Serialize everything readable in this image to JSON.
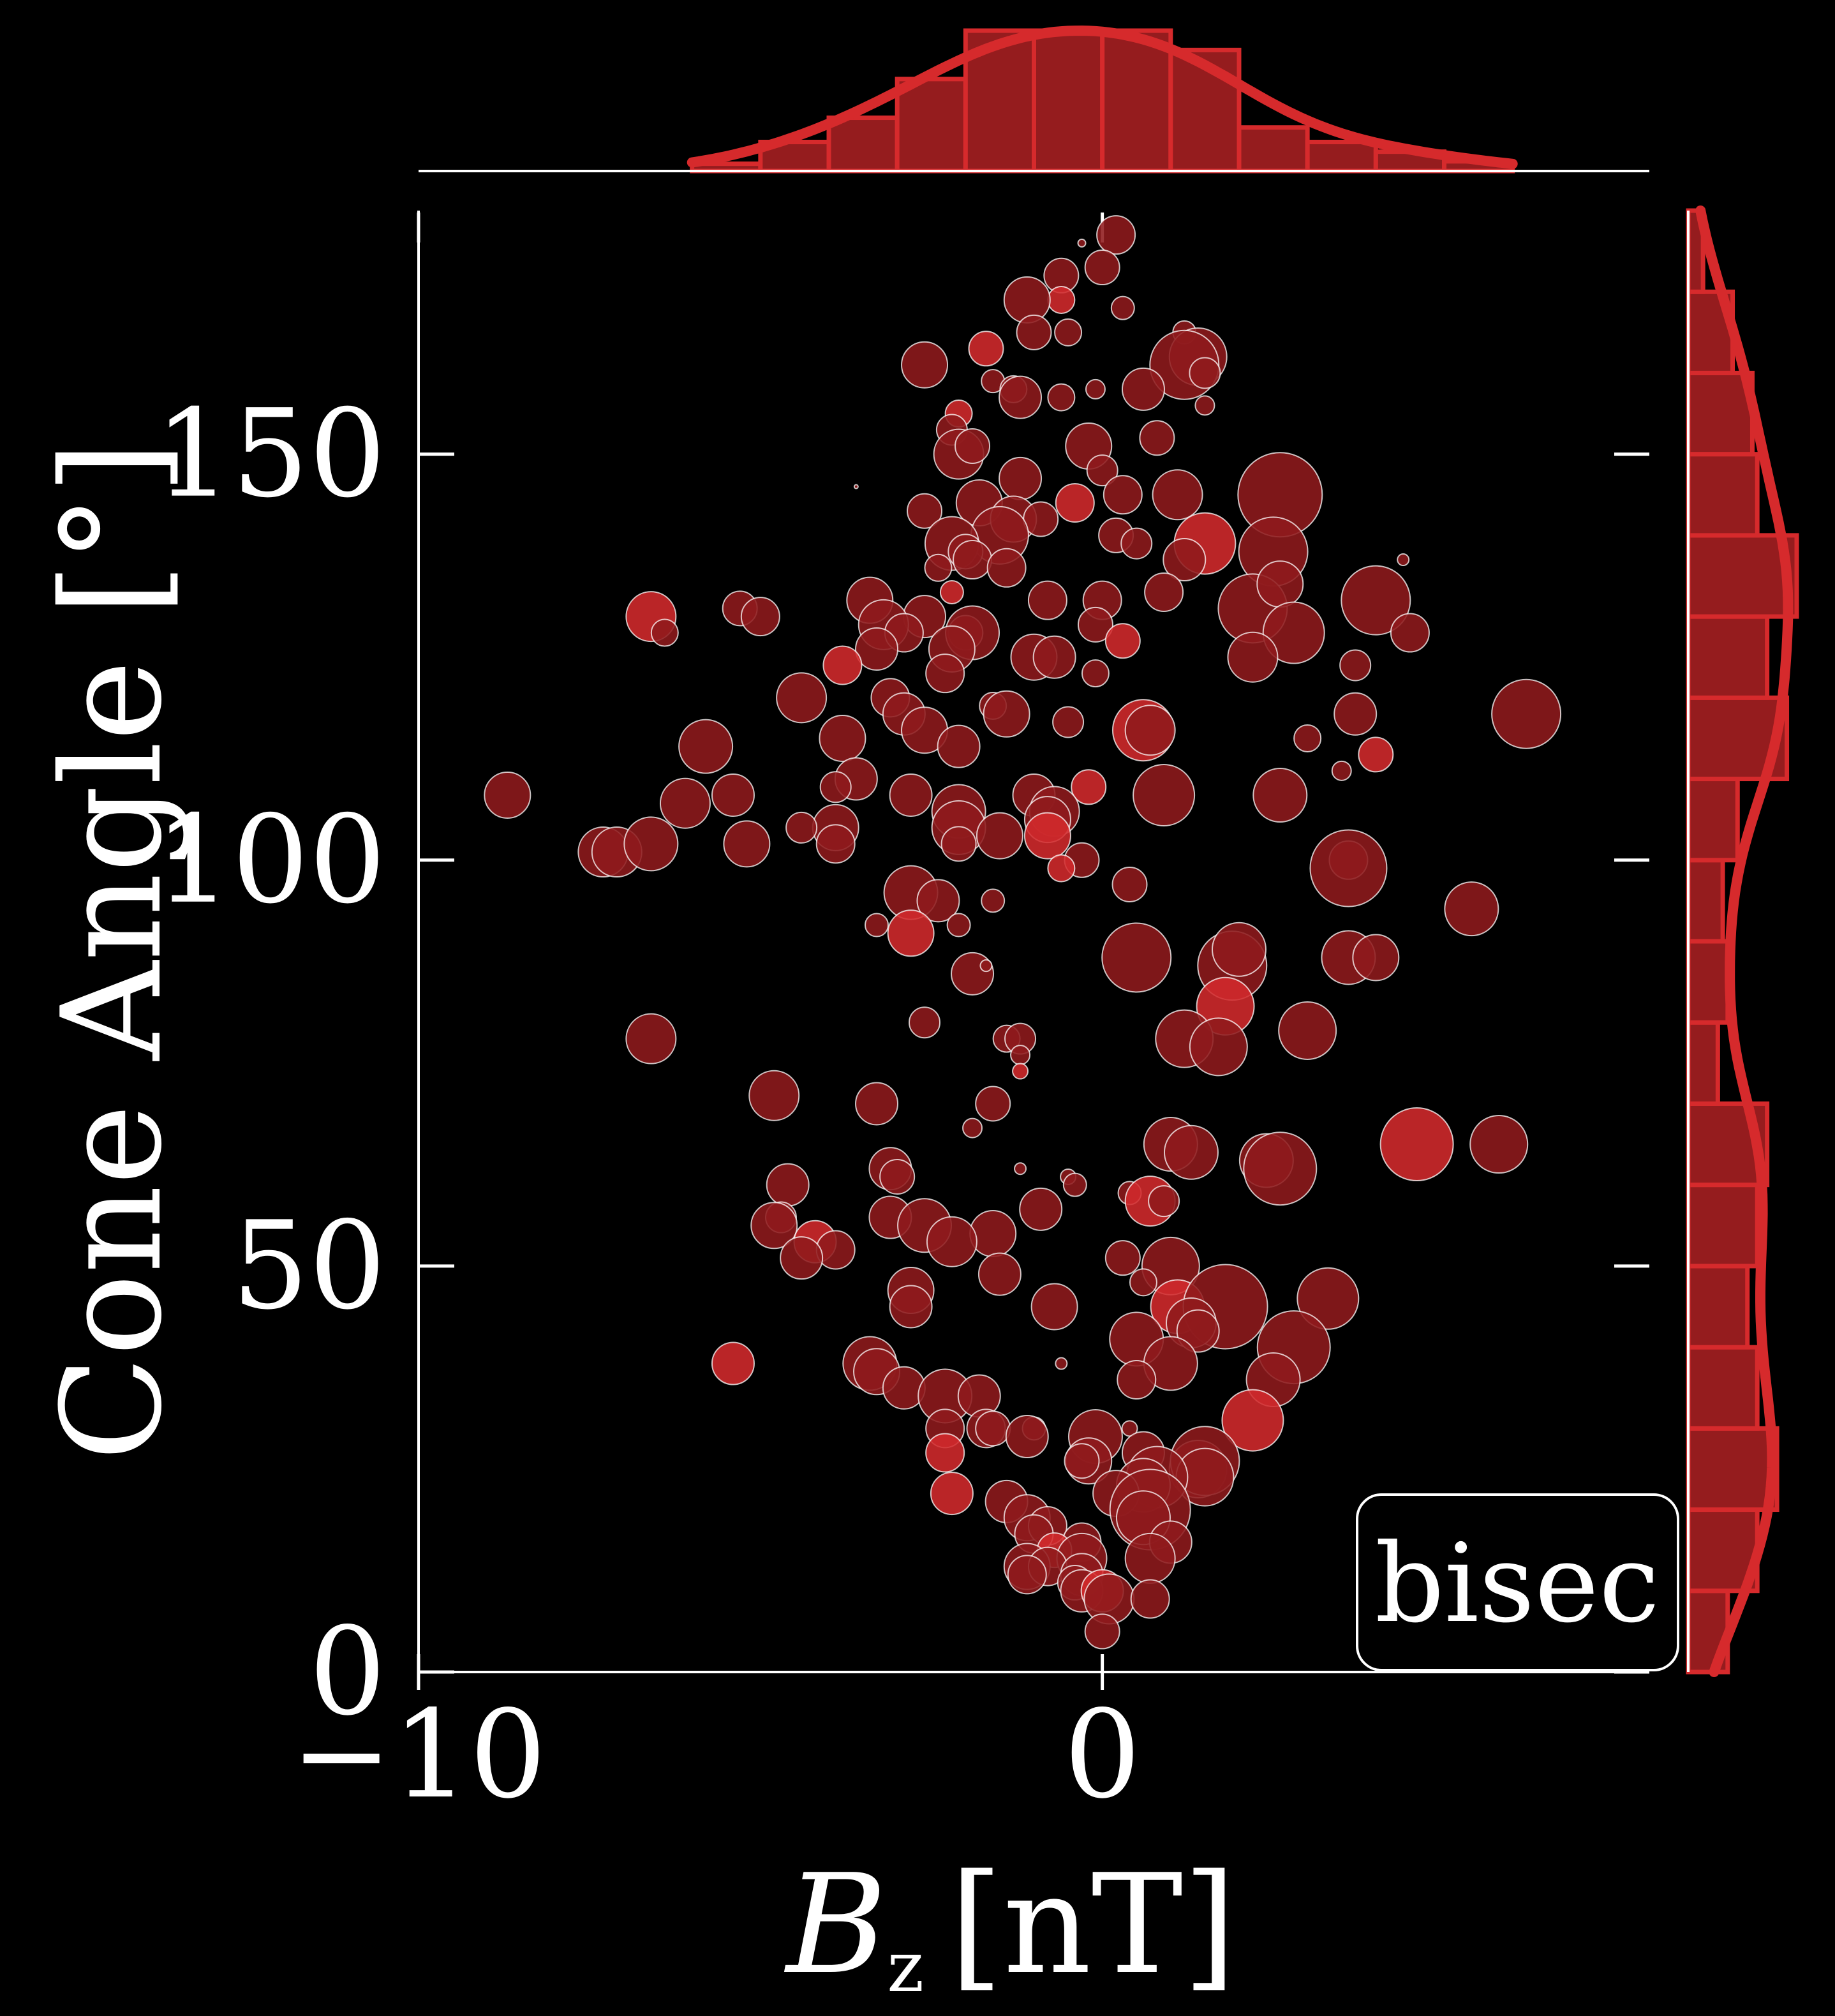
{
  "colors": {
    "background": "#000000",
    "foreground": "#ffffff",
    "point_fill": "#8f1a1c",
    "point_highlight": "#d42a2c",
    "point_stroke": "#ffffff",
    "histogram_fill": "#951c1e",
    "histogram_edge": "#d62a2c",
    "kde_line": "#d62a2c"
  },
  "chart_data": {
    "type": "scatter",
    "title": "",
    "xlabel_main": "B",
    "xlabel_sub": "z",
    "xlabel_unit": "[nT]",
    "ylabel": "Cone Angle [°]",
    "xlim": [
      -10,
      8
    ],
    "ylim": [
      0,
      180
    ],
    "xticks": [
      -10,
      0
    ],
    "yticks": [
      0,
      50,
      100,
      150
    ],
    "xtick_labels": [
      "−10",
      "0"
    ],
    "ytick_labels": [
      "0",
      "50",
      "100",
      "150"
    ],
    "legend": {
      "text": "bisec",
      "placement": "bottom-right"
    },
    "grid": false,
    "marginal_x_histogram": {
      "bin_edges": [
        -6,
        -5,
        -4,
        -3,
        -2,
        -1,
        0,
        1,
        2,
        3,
        4,
        5,
        6
      ],
      "counts": [
        3,
        12,
        22,
        38,
        58,
        58,
        58,
        50,
        18,
        12,
        8,
        4
      ]
    },
    "marginal_y_histogram": {
      "bin_edges": [
        0,
        10,
        20,
        30,
        40,
        50,
        60,
        70,
        80,
        90,
        100,
        110,
        120,
        130,
        140,
        150,
        160,
        170,
        180
      ],
      "counts": [
        8,
        14,
        18,
        14,
        12,
        14,
        16,
        6,
        8,
        7,
        10,
        20,
        16,
        22,
        14,
        13,
        9,
        3
      ]
    },
    "points": [
      {
        "x": 0.2,
        "y": 177,
        "s": 10
      },
      {
        "x": -0.3,
        "y": 176,
        "s": 2
      },
      {
        "x": -0.6,
        "y": 172,
        "s": 9
      },
      {
        "x": 0.0,
        "y": 173,
        "s": 9
      },
      {
        "x": -0.6,
        "y": 169,
        "s": 7
      },
      {
        "x": -1.1,
        "y": 169,
        "s": 12
      },
      {
        "x": 0.3,
        "y": 168,
        "s": 6
      },
      {
        "x": -1.0,
        "y": 165,
        "s": 9
      },
      {
        "x": -0.5,
        "y": 165,
        "s": 7
      },
      {
        "x": 1.2,
        "y": 165,
        "s": 6
      },
      {
        "x": 1.4,
        "y": 162,
        "s": 15
      },
      {
        "x": 1.2,
        "y": 161,
        "s": 18
      },
      {
        "x": 1.5,
        "y": 160,
        "s": 8
      },
      {
        "x": -1.7,
        "y": 163,
        "s": 9
      },
      {
        "x": -2.6,
        "y": 161,
        "s": 12
      },
      {
        "x": -1.6,
        "y": 159,
        "s": 6
      },
      {
        "x": -1.3,
        "y": 158,
        "s": 7
      },
      {
        "x": -1.2,
        "y": 157,
        "s": 11
      },
      {
        "x": -0.6,
        "y": 157,
        "s": 7
      },
      {
        "x": -0.1,
        "y": 158,
        "s": 5
      },
      {
        "x": 0.6,
        "y": 158,
        "s": 11
      },
      {
        "x": 1.5,
        "y": 156,
        "s": 5
      },
      {
        "x": -2.1,
        "y": 155,
        "s": 7
      },
      {
        "x": -2.2,
        "y": 153,
        "s": 8
      },
      {
        "x": -0.2,
        "y": 151,
        "s": 12
      },
      {
        "x": 0.8,
        "y": 152,
        "s": 9
      },
      {
        "x": -2.1,
        "y": 150,
        "s": 13
      },
      {
        "x": -1.9,
        "y": 151,
        "s": 9
      },
      {
        "x": -1.2,
        "y": 147,
        "s": 11
      },
      {
        "x": 0.0,
        "y": 148,
        "s": 8
      },
      {
        "x": 0.3,
        "y": 145,
        "s": 10
      },
      {
        "x": -0.4,
        "y": 144,
        "s": 10
      },
      {
        "x": -1.8,
        "y": 144,
        "s": 12
      },
      {
        "x": -2.6,
        "y": 143,
        "s": 9
      },
      {
        "x": -1.3,
        "y": 142,
        "s": 12
      },
      {
        "x": -0.9,
        "y": 142,
        "s": 9
      },
      {
        "x": 1.1,
        "y": 145,
        "s": 13
      },
      {
        "x": 2.6,
        "y": 145,
        "s": 22
      },
      {
        "x": 0.2,
        "y": 140,
        "s": 9
      },
      {
        "x": 0.5,
        "y": 139,
        "s": 8
      },
      {
        "x": 1.5,
        "y": 139,
        "s": 16
      },
      {
        "x": 2.5,
        "y": 138,
        "s": 18
      },
      {
        "x": -1.5,
        "y": 140,
        "s": 15
      },
      {
        "x": -2.2,
        "y": 139,
        "s": 14
      },
      {
        "x": -2.0,
        "y": 138,
        "s": 9
      },
      {
        "x": -2.4,
        "y": 136,
        "s": 7
      },
      {
        "x": 1.2,
        "y": 137,
        "s": 11
      },
      {
        "x": -1.9,
        "y": 137,
        "s": 10
      },
      {
        "x": -1.4,
        "y": 136,
        "s": 10
      },
      {
        "x": -2.2,
        "y": 133,
        "s": 6
      },
      {
        "x": 0.9,
        "y": 133,
        "s": 10
      },
      {
        "x": 2.2,
        "y": 131,
        "s": 18
      },
      {
        "x": 2.6,
        "y": 134,
        "s": 12
      },
      {
        "x": 4.0,
        "y": 132,
        "s": 18
      },
      {
        "x": -3.4,
        "y": 132,
        "s": 12
      },
      {
        "x": -2.6,
        "y": 130,
        "s": 11
      },
      {
        "x": -0.8,
        "y": 132,
        "s": 10
      },
      {
        "x": 0.0,
        "y": 132,
        "s": 10
      },
      {
        "x": -6.6,
        "y": 130,
        "s": 13
      },
      {
        "x": -5.3,
        "y": 131,
        "s": 9
      },
      {
        "x": -5.0,
        "y": 130,
        "s": 10
      },
      {
        "x": -6.4,
        "y": 128,
        "s": 7
      },
      {
        "x": -3.2,
        "y": 129,
        "s": 13
      },
      {
        "x": -2.9,
        "y": 128,
        "s": 10
      },
      {
        "x": -2.0,
        "y": 128,
        "s": 9
      },
      {
        "x": -1.9,
        "y": 128,
        "s": 14
      },
      {
        "x": -0.1,
        "y": 129,
        "s": 9
      },
      {
        "x": 0.3,
        "y": 127,
        "s": 9
      },
      {
        "x": 2.8,
        "y": 128,
        "s": 16
      },
      {
        "x": 4.5,
        "y": 128,
        "s": 10
      },
      {
        "x": -3.3,
        "y": 126,
        "s": 11
      },
      {
        "x": -2.2,
        "y": 126,
        "s": 12
      },
      {
        "x": -1.0,
        "y": 125,
        "s": 12
      },
      {
        "x": -0.7,
        "y": 125,
        "s": 11
      },
      {
        "x": 2.2,
        "y": 125,
        "s": 13
      },
      {
        "x": 3.7,
        "y": 124,
        "s": 8
      },
      {
        "x": -3.8,
        "y": 124,
        "s": 10
      },
      {
        "x": -0.1,
        "y": 123,
        "s": 7
      },
      {
        "x": -2.3,
        "y": 123,
        "s": 10
      },
      {
        "x": -4.4,
        "y": 120,
        "s": 13
      },
      {
        "x": -3.1,
        "y": 120,
        "s": 10
      },
      {
        "x": -2.9,
        "y": 118,
        "s": 11
      },
      {
        "x": -1.6,
        "y": 119,
        "s": 7
      },
      {
        "x": -1.4,
        "y": 118,
        "s": 12
      },
      {
        "x": -0.5,
        "y": 117,
        "s": 8
      },
      {
        "x": 0.6,
        "y": 116,
        "s": 16
      },
      {
        "x": 0.7,
        "y": 116,
        "s": 13
      },
      {
        "x": 3.7,
        "y": 118,
        "s": 11
      },
      {
        "x": 6.2,
        "y": 118,
        "s": 18
      },
      {
        "x": -2.6,
        "y": 116,
        "s": 12
      },
      {
        "x": -3.8,
        "y": 115,
        "s": 12
      },
      {
        "x": -5.8,
        "y": 114,
        "s": 14
      },
      {
        "x": -2.1,
        "y": 114,
        "s": 11
      },
      {
        "x": 3.0,
        "y": 115,
        "s": 7
      },
      {
        "x": 4.0,
        "y": 113,
        "s": 9
      },
      {
        "x": 3.5,
        "y": 111,
        "s": 5
      },
      {
        "x": -3.6,
        "y": 110,
        "s": 11
      },
      {
        "x": -3.9,
        "y": 109,
        "s": 8
      },
      {
        "x": -8.7,
        "y": 108,
        "s": 12
      },
      {
        "x": -5.4,
        "y": 108,
        "s": 11
      },
      {
        "x": -6.1,
        "y": 107,
        "s": 13
      },
      {
        "x": -2.8,
        "y": 108,
        "s": 11
      },
      {
        "x": -1.0,
        "y": 108,
        "s": 11
      },
      {
        "x": -0.2,
        "y": 109,
        "s": 9
      },
      {
        "x": 0.9,
        "y": 108,
        "s": 16
      },
      {
        "x": 2.6,
        "y": 108,
        "s": 14
      },
      {
        "x": -2.1,
        "y": 106,
        "s": 14
      },
      {
        "x": -0.7,
        "y": 106,
        "s": 13
      },
      {
        "x": -0.8,
        "y": 105,
        "s": 12
      },
      {
        "x": -2.1,
        "y": 104,
        "s": 14
      },
      {
        "x": -3.9,
        "y": 104,
        "s": 12
      },
      {
        "x": -2.1,
        "y": 102,
        "s": 9
      },
      {
        "x": -0.8,
        "y": 103,
        "s": 12
      },
      {
        "x": -1.5,
        "y": 103,
        "s": 12
      },
      {
        "x": -4.4,
        "y": 104,
        "s": 8
      },
      {
        "x": -3.9,
        "y": 102,
        "s": 10
      },
      {
        "x": -7.3,
        "y": 101,
        "s": 13
      },
      {
        "x": -7.1,
        "y": 101,
        "s": 13
      },
      {
        "x": -6.6,
        "y": 102,
        "s": 14
      },
      {
        "x": -5.2,
        "y": 102,
        "s": 12
      },
      {
        "x": -0.3,
        "y": 100,
        "s": 9
      },
      {
        "x": -0.6,
        "y": 99,
        "s": 7
      },
      {
        "x": 3.6,
        "y": 100,
        "s": 10
      },
      {
        "x": 3.6,
        "y": 99,
        "s": 20
      },
      {
        "x": 0.4,
        "y": 97,
        "s": 9
      },
      {
        "x": -2.8,
        "y": 96,
        "s": 14
      },
      {
        "x": -1.6,
        "y": 95,
        "s": 6
      },
      {
        "x": -2.4,
        "y": 95,
        "s": 11
      },
      {
        "x": 5.4,
        "y": 94,
        "s": 14
      },
      {
        "x": -3.3,
        "y": 92,
        "s": 6
      },
      {
        "x": -2.8,
        "y": 91,
        "s": 12
      },
      {
        "x": -2.1,
        "y": 92,
        "s": 6
      },
      {
        "x": 0.5,
        "y": 88,
        "s": 18
      },
      {
        "x": 1.9,
        "y": 87,
        "s": 18
      },
      {
        "x": 2.0,
        "y": 89,
        "s": 14
      },
      {
        "x": 3.6,
        "y": 88,
        "s": 14
      },
      {
        "x": 4.0,
        "y": 88,
        "s": 12
      },
      {
        "x": -1.9,
        "y": 86,
        "s": 11
      },
      {
        "x": -1.7,
        "y": 87,
        "s": 3
      },
      {
        "x": 1.8,
        "y": 82,
        "s": 15
      },
      {
        "x": -2.6,
        "y": 80,
        "s": 8
      },
      {
        "x": -1.4,
        "y": 78,
        "s": 7
      },
      {
        "x": -1.2,
        "y": 78,
        "s": 8
      },
      {
        "x": 1.2,
        "y": 78,
        "s": 15
      },
      {
        "x": 3.0,
        "y": 79,
        "s": 15
      },
      {
        "x": -6.6,
        "y": 78,
        "s": 13
      },
      {
        "x": 1.7,
        "y": 77,
        "s": 15
      },
      {
        "x": -1.2,
        "y": 76,
        "s": 5
      },
      {
        "x": -1.2,
        "y": 74,
        "s": 4
      },
      {
        "x": -4.8,
        "y": 71,
        "s": 13
      },
      {
        "x": -3.3,
        "y": 70,
        "s": 11
      },
      {
        "x": -1.6,
        "y": 70,
        "s": 9
      },
      {
        "x": -1.9,
        "y": 67,
        "s": 5
      },
      {
        "x": 1.0,
        "y": 65,
        "s": 14
      },
      {
        "x": 1.3,
        "y": 64,
        "s": 14
      },
      {
        "x": 2.4,
        "y": 63,
        "s": 14
      },
      {
        "x": 2.6,
        "y": 62,
        "s": 19
      },
      {
        "x": 4.6,
        "y": 65,
        "s": 19
      },
      {
        "x": 5.8,
        "y": 65,
        "s": 15
      },
      {
        "x": -3.1,
        "y": 62,
        "s": 11
      },
      {
        "x": -3.0,
        "y": 61,
        "s": 9
      },
      {
        "x": -1.2,
        "y": 62,
        "s": 3
      },
      {
        "x": -0.5,
        "y": 61,
        "s": 4
      },
      {
        "x": -0.4,
        "y": 60,
        "s": 6
      },
      {
        "x": -4.6,
        "y": 60,
        "s": 11
      },
      {
        "x": 0.4,
        "y": 59,
        "s": 6
      },
      {
        "x": 0.7,
        "y": 58,
        "s": 13
      },
      {
        "x": 0.9,
        "y": 58,
        "s": 8
      },
      {
        "x": -0.9,
        "y": 57,
        "s": 11
      },
      {
        "x": -3.1,
        "y": 56,
        "s": 11
      },
      {
        "x": -2.6,
        "y": 55,
        "s": 14
      },
      {
        "x": -4.7,
        "y": 56,
        "s": 8
      },
      {
        "x": -4.8,
        "y": 55,
        "s": 12
      },
      {
        "x": -1.6,
        "y": 54,
        "s": 12
      },
      {
        "x": -2.2,
        "y": 53,
        "s": 13
      },
      {
        "x": -4.2,
        "y": 53,
        "s": 11
      },
      {
        "x": -3.9,
        "y": 52,
        "s": 10
      },
      {
        "x": -4.4,
        "y": 51,
        "s": 11
      },
      {
        "x": 0.3,
        "y": 51,
        "s": 9
      },
      {
        "x": 1.0,
        "y": 50,
        "s": 15
      },
      {
        "x": -1.5,
        "y": 49,
        "s": 11
      },
      {
        "x": -2.8,
        "y": 47,
        "s": 12
      },
      {
        "x": 0.6,
        "y": 48,
        "s": 7
      },
      {
        "x": 3.3,
        "y": 46,
        "s": 16
      },
      {
        "x": 1.1,
        "y": 45,
        "s": 14
      },
      {
        "x": 1.8,
        "y": 45,
        "s": 22
      },
      {
        "x": -0.7,
        "y": 45,
        "s": 12
      },
      {
        "x": -2.8,
        "y": 45,
        "s": 11
      },
      {
        "x": 1.3,
        "y": 43,
        "s": 13
      },
      {
        "x": 1.4,
        "y": 42,
        "s": 11
      },
      {
        "x": 0.5,
        "y": 41,
        "s": 14
      },
      {
        "x": 2.8,
        "y": 40,
        "s": 19
      },
      {
        "x": 1.0,
        "y": 38,
        "s": 14
      },
      {
        "x": -5.4,
        "y": 38,
        "s": 11
      },
      {
        "x": -3.4,
        "y": 38,
        "s": 14
      },
      {
        "x": -0.6,
        "y": 38,
        "s": 3
      },
      {
        "x": -3.3,
        "y": 37,
        "s": 12
      },
      {
        "x": 2.5,
        "y": 36,
        "s": 14
      },
      {
        "x": 0.5,
        "y": 36,
        "s": 10
      },
      {
        "x": -2.9,
        "y": 35,
        "s": 11
      },
      {
        "x": -2.3,
        "y": 34,
        "s": 14
      },
      {
        "x": -1.8,
        "y": 34,
        "s": 11
      },
      {
        "x": 2.2,
        "y": 31,
        "s": 16
      },
      {
        "x": -1.7,
        "y": 30,
        "s": 10
      },
      {
        "x": -1.6,
        "y": 30,
        "s": 9
      },
      {
        "x": -2.3,
        "y": 30,
        "s": 10
      },
      {
        "x": -1.0,
        "y": 30,
        "s": 6
      },
      {
        "x": -1.1,
        "y": 29,
        "s": 11
      },
      {
        "x": 0.4,
        "y": 30,
        "s": 4
      },
      {
        "x": -0.1,
        "y": 29,
        "s": 14
      },
      {
        "x": 0.6,
        "y": 27,
        "s": 11
      },
      {
        "x": -2.3,
        "y": 27,
        "s": 10
      },
      {
        "x": -0.2,
        "y": 26,
        "s": 12
      },
      {
        "x": -0.3,
        "y": 26,
        "s": 9
      },
      {
        "x": 1.4,
        "y": 25,
        "s": 15
      },
      {
        "x": 1.5,
        "y": 26,
        "s": 18
      },
      {
        "x": 1.5,
        "y": 24,
        "s": 15
      },
      {
        "x": 0.8,
        "y": 24,
        "s": 16
      },
      {
        "x": 0.6,
        "y": 23,
        "s": 14
      },
      {
        "x": 0.2,
        "y": 22,
        "s": 12
      },
      {
        "x": -2.2,
        "y": 22,
        "s": 11
      },
      {
        "x": -1.4,
        "y": 21,
        "s": 11
      },
      {
        "x": 0.7,
        "y": 20,
        "s": 21
      },
      {
        "x": 0.6,
        "y": 19,
        "s": 14
      },
      {
        "x": -1.1,
        "y": 19,
        "s": 12
      },
      {
        "x": -0.8,
        "y": 18,
        "s": 10
      },
      {
        "x": -1.0,
        "y": 17,
        "s": 10
      },
      {
        "x": -0.3,
        "y": 16,
        "s": 10
      },
      {
        "x": 1.0,
        "y": 16,
        "s": 11
      },
      {
        "x": -0.7,
        "y": 15,
        "s": 9
      },
      {
        "x": -0.3,
        "y": 14,
        "s": 13
      },
      {
        "x": 0.7,
        "y": 14,
        "s": 13
      },
      {
        "x": -1.1,
        "y": 13,
        "s": 12
      },
      {
        "x": -0.8,
        "y": 13,
        "s": 10
      },
      {
        "x": -1.1,
        "y": 12,
        "s": 10
      },
      {
        "x": -0.3,
        "y": 12,
        "s": 11
      },
      {
        "x": -0.4,
        "y": 11,
        "s": 9
      },
      {
        "x": -0.3,
        "y": 10,
        "s": 11
      },
      {
        "x": 0.0,
        "y": 10,
        "s": 11
      },
      {
        "x": 0.1,
        "y": 9,
        "s": 13
      },
      {
        "x": 0.7,
        "y": 9,
        "s": 10
      },
      {
        "x": 0.0,
        "y": 5,
        "s": 9
      },
      {
        "x": -3.6,
        "y": 146,
        "s": 1
      },
      {
        "x": 4.4,
        "y": 137,
        "s": 3
      }
    ]
  }
}
